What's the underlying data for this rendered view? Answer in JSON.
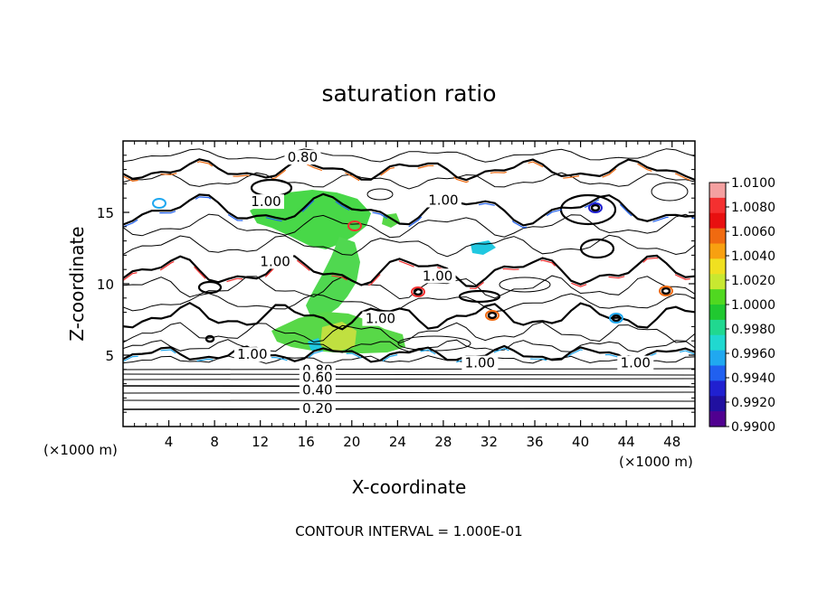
{
  "chart_data": {
    "type": "contour",
    "title": "saturation ratio",
    "xlabel": "X-coordinate",
    "ylabel": "Z-coordinate",
    "x_unit_left": "(×1000 m)",
    "x_unit_right": "(×1000 m)",
    "xlim": [
      0,
      50
    ],
    "ylim": [
      0,
      20
    ],
    "x_ticks": [
      4,
      8,
      12,
      16,
      20,
      24,
      28,
      32,
      36,
      40,
      44,
      48
    ],
    "y_ticks": [
      5,
      10,
      15
    ],
    "contour_labels": [
      {
        "text": "0.80",
        "x": 15.7,
        "z": 18.6
      },
      {
        "text": "1.00",
        "x": 28.0,
        "z": 15.6
      },
      {
        "text": "1.00",
        "x": 12.5,
        "z": 15.5
      },
      {
        "text": "1.00",
        "x": 13.3,
        "z": 11.3
      },
      {
        "text": "1.00",
        "x": 27.5,
        "z": 10.3
      },
      {
        "text": "1.00",
        "x": 22.5,
        "z": 7.3
      },
      {
        "text": "1.00",
        "x": 11.3,
        "z": 4.8
      },
      {
        "text": "0.80",
        "x": 17.0,
        "z": 3.7
      },
      {
        "text": "0.60",
        "x": 17.0,
        "z": 3.2
      },
      {
        "text": "0.40",
        "x": 17.0,
        "z": 2.3
      },
      {
        "text": "0.20",
        "x": 17.0,
        "z": 1.0
      },
      {
        "text": "1.00",
        "x": 31.2,
        "z": 4.2
      },
      {
        "text": "1.00",
        "x": 44.8,
        "z": 4.2
      }
    ],
    "colorbar": {
      "min": 0.99,
      "max": 1.01,
      "tick_labels": [
        "1.0100",
        "1.0080",
        "1.0060",
        "1.0040",
        "1.0020",
        "1.0000",
        "0.9980",
        "0.9960",
        "0.9940",
        "0.9920",
        "0.9900"
      ],
      "colors": [
        "#f4a0a0",
        "#f43030",
        "#e81010",
        "#f06a10",
        "#f8a010",
        "#f0e020",
        "#c8e830",
        "#50d820",
        "#20c830",
        "#20d890",
        "#20d8d0",
        "#20a8f0",
        "#2060f0",
        "#2020d0",
        "#2010a0",
        "#500090"
      ]
    },
    "footer": "CONTOUR INTERVAL = 1.000E-01"
  }
}
